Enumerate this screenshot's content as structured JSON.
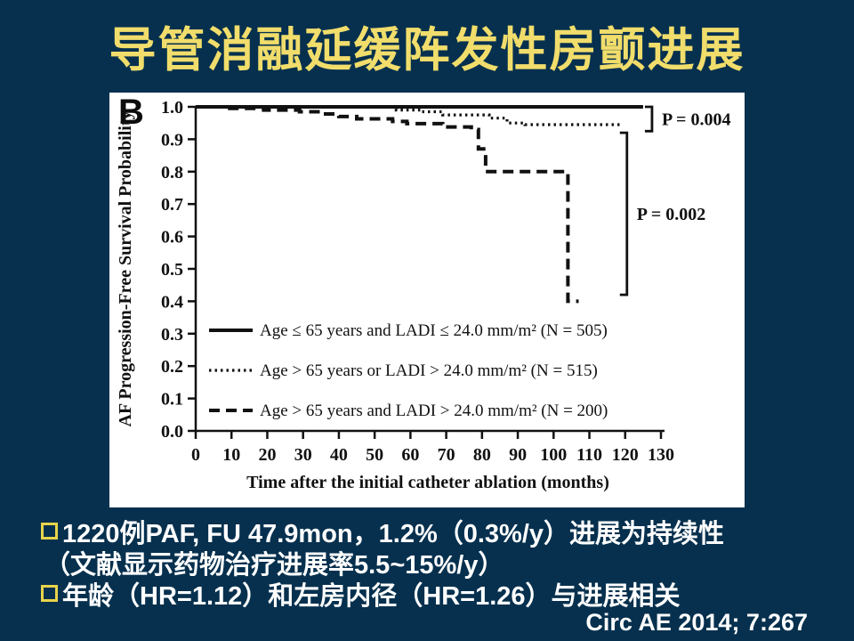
{
  "slide": {
    "title": "导管消融延缓阵发性房颤进展",
    "citation": "Circ AE 2014; 7:267",
    "background_color": "#06304E",
    "title_color": "#F1DD6B",
    "bullet_square_color": "#E8D34A"
  },
  "bullets": {
    "b1_line1": "1220例PAF, FU 47.9mon，1.2%（0.3%/y）进展为持续性",
    "b1_line2": "（文献显示药物治疗进展率5.5~15%/y）",
    "b2_line1": "年龄（HR=1.12）和左房内径（HR=1.26）与进展相关"
  },
  "chart_data": {
    "type": "line",
    "subtype": "kaplan-meier-step",
    "panel_label": "B",
    "xlabel": "Time after the initial catheter ablation (months)",
    "ylabel": "AF Progression-Free Survival Probability",
    "xlim": [
      0,
      130
    ],
    "ylim": [
      0.0,
      1.0
    ],
    "xticks": [
      0,
      10,
      20,
      30,
      40,
      50,
      60,
      70,
      80,
      90,
      100,
      110,
      120,
      130
    ],
    "yticks": [
      0.0,
      0.1,
      0.2,
      0.3,
      0.4,
      0.5,
      0.6,
      0.7,
      0.8,
      0.9,
      1.0
    ],
    "grid": false,
    "legend_position": "inside-lower-left",
    "line_color": "#111111",
    "series": [
      {
        "name": "Age ≤ 65 years and LADI ≤ 24.0 mm/m² (N = 505)",
        "style": "solid",
        "points": [
          [
            0,
            1.0
          ],
          [
            125,
            1.0
          ]
        ]
      },
      {
        "name": "Age > 65 years or LADI > 24.0 mm/m² (N = 515)",
        "style": "dotted",
        "points": [
          [
            0,
            1.0
          ],
          [
            56,
            1.0
          ],
          [
            56,
            0.99
          ],
          [
            63,
            0.99
          ],
          [
            63,
            0.985
          ],
          [
            69,
            0.985
          ],
          [
            69,
            0.975
          ],
          [
            82,
            0.975
          ],
          [
            82,
            0.965
          ],
          [
            87,
            0.965
          ],
          [
            87,
            0.95
          ],
          [
            92,
            0.95
          ],
          [
            92,
            0.945
          ],
          [
            119,
            0.945
          ]
        ]
      },
      {
        "name": "Age > 65 years and LADI > 24.0 mm/m² (N = 200)",
        "style": "dashed",
        "points": [
          [
            0,
            1.0
          ],
          [
            8,
            1.0
          ],
          [
            8,
            0.995
          ],
          [
            19,
            0.995
          ],
          [
            19,
            0.99
          ],
          [
            29,
            0.99
          ],
          [
            29,
            0.985
          ],
          [
            35,
            0.985
          ],
          [
            35,
            0.978
          ],
          [
            40,
            0.978
          ],
          [
            40,
            0.97
          ],
          [
            45,
            0.97
          ],
          [
            45,
            0.963
          ],
          [
            55,
            0.963
          ],
          [
            55,
            0.955
          ],
          [
            59,
            0.955
          ],
          [
            59,
            0.948
          ],
          [
            69,
            0.948
          ],
          [
            69,
            0.938
          ],
          [
            77,
            0.938
          ],
          [
            77,
            0.93
          ],
          [
            79,
            0.93
          ],
          [
            79,
            0.87
          ],
          [
            81,
            0.87
          ],
          [
            81,
            0.8
          ],
          [
            104,
            0.8
          ],
          [
            104,
            0.4
          ],
          [
            107,
            0.4
          ]
        ]
      }
    ],
    "annotations": [
      {
        "label": "P = 0.004",
        "x_month": 127.5,
        "y_top": 1.0,
        "y_bottom": 0.925
      },
      {
        "label": "P = 0.002",
        "x_month": 120.5,
        "y_top": 0.92,
        "y_bottom": 0.42
      }
    ]
  }
}
